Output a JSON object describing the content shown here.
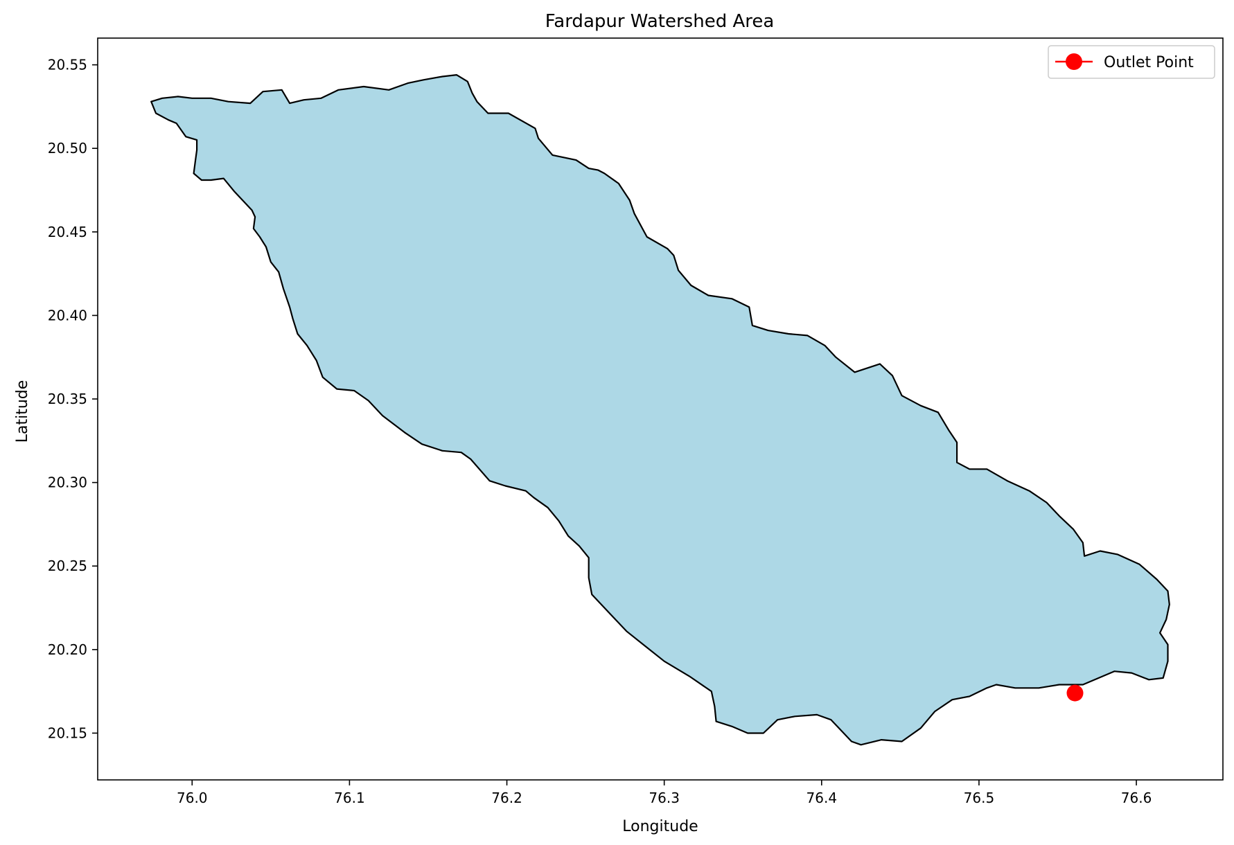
{
  "chart_data": {
    "type": "map",
    "title": "Fardapur Watershed Area",
    "xlabel": "Longitude",
    "ylabel": "Latitude",
    "xlim": [
      75.94,
      76.655
    ],
    "ylim": [
      20.122,
      20.566
    ],
    "xticks": [
      76.0,
      76.1,
      76.2,
      76.3,
      76.4,
      76.5,
      76.6
    ],
    "xtick_labels": [
      "76.0",
      "76.1",
      "76.2",
      "76.3",
      "76.4",
      "76.5",
      "76.6"
    ],
    "yticks": [
      20.15,
      20.2,
      20.25,
      20.3,
      20.35,
      20.4,
      20.45,
      20.5,
      20.55
    ],
    "ytick_labels": [
      "20.15",
      "20.20",
      "20.25",
      "20.30",
      "20.35",
      "20.40",
      "20.45",
      "20.50",
      "20.55"
    ],
    "grid": false,
    "legend": {
      "placement": "top-right",
      "entries": [
        "Outlet Point"
      ]
    },
    "colors": {
      "watershed_fill": "#add8e6",
      "watershed_edge": "#000000",
      "outlet": "#ff0000"
    },
    "outlet_point": {
      "name": "Outlet Point",
      "lon": 76.561,
      "lat": 20.174
    },
    "watershed_boundary": [
      [
        75.974,
        20.528
      ],
      [
        75.977,
        20.521
      ],
      [
        75.985,
        20.517
      ],
      [
        75.99,
        20.515
      ],
      [
        75.996,
        20.507
      ],
      [
        76.003,
        20.505
      ],
      [
        76.003,
        20.499
      ],
      [
        76.002,
        20.492
      ],
      [
        76.001,
        20.485
      ],
      [
        76.006,
        20.481
      ],
      [
        76.012,
        20.481
      ],
      [
        76.02,
        20.482
      ],
      [
        76.027,
        20.474
      ],
      [
        76.032,
        20.469
      ],
      [
        76.038,
        20.463
      ],
      [
        76.04,
        20.459
      ],
      [
        76.039,
        20.452
      ],
      [
        76.043,
        20.447
      ],
      [
        76.047,
        20.441
      ],
      [
        76.05,
        20.432
      ],
      [
        76.055,
        20.426
      ],
      [
        76.058,
        20.416
      ],
      [
        76.062,
        20.405
      ],
      [
        76.064,
        20.398
      ],
      [
        76.067,
        20.389
      ],
      [
        76.073,
        20.382
      ],
      [
        76.079,
        20.373
      ],
      [
        76.083,
        20.363
      ],
      [
        76.092,
        20.356
      ],
      [
        76.103,
        20.355
      ],
      [
        76.112,
        20.349
      ],
      [
        76.121,
        20.34
      ],
      [
        76.135,
        20.33
      ],
      [
        76.146,
        20.323
      ],
      [
        76.159,
        20.319
      ],
      [
        76.171,
        20.318
      ],
      [
        76.177,
        20.314
      ],
      [
        76.189,
        20.301
      ],
      [
        76.199,
        20.298
      ],
      [
        76.212,
        20.295
      ],
      [
        76.217,
        20.291
      ],
      [
        76.226,
        20.285
      ],
      [
        76.233,
        20.277
      ],
      [
        76.239,
        20.268
      ],
      [
        76.246,
        20.262
      ],
      [
        76.252,
        20.255
      ],
      [
        76.252,
        20.243
      ],
      [
        76.254,
        20.233
      ],
      [
        76.264,
        20.223
      ],
      [
        76.276,
        20.211
      ],
      [
        76.288,
        20.202
      ],
      [
        76.3,
        20.193
      ],
      [
        76.316,
        20.184
      ],
      [
        76.33,
        20.175
      ],
      [
        76.332,
        20.166
      ],
      [
        76.333,
        20.157
      ],
      [
        76.343,
        20.154
      ],
      [
        76.353,
        20.15
      ],
      [
        76.363,
        20.15
      ],
      [
        76.372,
        20.158
      ],
      [
        76.383,
        20.16
      ],
      [
        76.397,
        20.161
      ],
      [
        76.406,
        20.158
      ],
      [
        76.413,
        20.151
      ],
      [
        76.419,
        20.145
      ],
      [
        76.425,
        20.143
      ],
      [
        76.438,
        20.146
      ],
      [
        76.451,
        20.145
      ],
      [
        76.463,
        20.153
      ],
      [
        76.472,
        20.163
      ],
      [
        76.483,
        20.17
      ],
      [
        76.494,
        20.172
      ],
      [
        76.505,
        20.177
      ],
      [
        76.511,
        20.179
      ],
      [
        76.523,
        20.177
      ],
      [
        76.538,
        20.177
      ],
      [
        76.551,
        20.179
      ],
      [
        76.566,
        20.179
      ],
      [
        76.576,
        20.183
      ],
      [
        76.586,
        20.187
      ],
      [
        76.597,
        20.186
      ],
      [
        76.608,
        20.182
      ],
      [
        76.617,
        20.183
      ],
      [
        76.62,
        20.193
      ],
      [
        76.62,
        20.203
      ],
      [
        76.615,
        20.21
      ],
      [
        76.619,
        20.218
      ],
      [
        76.621,
        20.227
      ],
      [
        76.62,
        20.235
      ],
      [
        76.613,
        20.242
      ],
      [
        76.602,
        20.251
      ],
      [
        76.588,
        20.257
      ],
      [
        76.577,
        20.259
      ],
      [
        76.567,
        20.256
      ],
      [
        76.566,
        20.264
      ],
      [
        76.56,
        20.272
      ],
      [
        76.551,
        20.28
      ],
      [
        76.543,
        20.288
      ],
      [
        76.532,
        20.295
      ],
      [
        76.518,
        20.301
      ],
      [
        76.505,
        20.308
      ],
      [
        76.494,
        20.308
      ],
      [
        76.486,
        20.312
      ],
      [
        76.486,
        20.324
      ],
      [
        76.481,
        20.331
      ],
      [
        76.474,
        20.342
      ],
      [
        76.463,
        20.346
      ],
      [
        76.451,
        20.352
      ],
      [
        76.445,
        20.364
      ],
      [
        76.437,
        20.371
      ],
      [
        76.421,
        20.366
      ],
      [
        76.409,
        20.375
      ],
      [
        76.402,
        20.382
      ],
      [
        76.391,
        20.388
      ],
      [
        76.379,
        20.389
      ],
      [
        76.366,
        20.391
      ],
      [
        76.356,
        20.394
      ],
      [
        76.354,
        20.405
      ],
      [
        76.343,
        20.41
      ],
      [
        76.328,
        20.412
      ],
      [
        76.317,
        20.418
      ],
      [
        76.309,
        20.427
      ],
      [
        76.306,
        20.436
      ],
      [
        76.302,
        20.44
      ],
      [
        76.289,
        20.447
      ],
      [
        76.281,
        20.461
      ],
      [
        76.278,
        20.469
      ],
      [
        76.271,
        20.479
      ],
      [
        76.262,
        20.485
      ],
      [
        76.258,
        20.487
      ],
      [
        76.252,
        20.488
      ],
      [
        76.244,
        20.493
      ],
      [
        76.229,
        20.496
      ],
      [
        76.22,
        20.506
      ],
      [
        76.218,
        20.512
      ],
      [
        76.201,
        20.521
      ],
      [
        76.188,
        20.521
      ],
      [
        76.181,
        20.528
      ],
      [
        76.178,
        20.533
      ],
      [
        76.175,
        20.54
      ],
      [
        76.168,
        20.544
      ],
      [
        76.159,
        20.543
      ],
      [
        76.147,
        20.541
      ],
      [
        76.137,
        20.539
      ],
      [
        76.125,
        20.535
      ],
      [
        76.109,
        20.537
      ],
      [
        76.093,
        20.535
      ],
      [
        76.082,
        20.53
      ],
      [
        76.071,
        20.529
      ],
      [
        76.062,
        20.527
      ],
      [
        76.057,
        20.535
      ],
      [
        76.045,
        20.534
      ],
      [
        76.037,
        20.527
      ],
      [
        76.023,
        20.528
      ],
      [
        76.012,
        20.53
      ],
      [
        76.0,
        20.53
      ],
      [
        75.991,
        20.531
      ],
      [
        75.981,
        20.53
      ],
      [
        75.974,
        20.528
      ]
    ]
  }
}
